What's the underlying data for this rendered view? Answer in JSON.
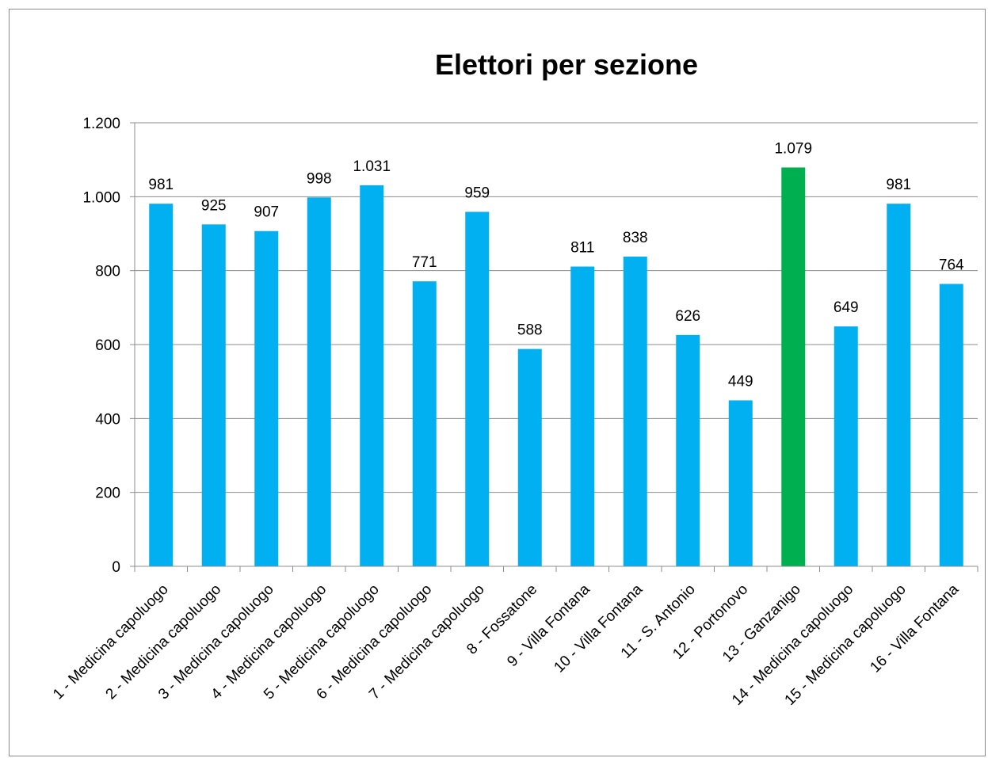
{
  "chart_data": {
    "type": "bar",
    "title": "Elettori per sezione",
    "xlabel": "",
    "ylabel": "",
    "ylim": [
      0,
      1200
    ],
    "yticks": [
      {
        "value": 0,
        "label": "0"
      },
      {
        "value": 200,
        "label": "200"
      },
      {
        "value": 400,
        "label": "400"
      },
      {
        "value": 600,
        "label": "600"
      },
      {
        "value": 800,
        "label": "800"
      },
      {
        "value": 1000,
        "label": "1.000"
      },
      {
        "value": 1200,
        "label": "1.200"
      }
    ],
    "grid": true,
    "legend": "none",
    "categories": [
      "1 - Medicina capoluogo",
      "2 - Medicina capoluogo",
      "3 - Medicina capoluogo",
      "4 - Medicina capoluogo",
      "5 - Medicina capoluogo",
      "6 - Medicina capoluogo",
      "7 - Medicina capoluogo",
      "8 - Fossatone",
      "9 - Villa Fontana",
      "10 - Villa Fontana",
      "11 - S. Antonio",
      "12 - Portonovo",
      "13 - Ganzanigo",
      "14 - Medicina capoluogo",
      "15 - Medicina capoluogo",
      "16 - Villa Fontana"
    ],
    "values": [
      981,
      925,
      907,
      998,
      1031,
      771,
      959,
      588,
      811,
      838,
      626,
      449,
      1079,
      649,
      981,
      764
    ],
    "data_labels": [
      "981",
      "925",
      "907",
      "998",
      "1.031",
      "771",
      "959",
      "588",
      "811",
      "838",
      "626",
      "449",
      "1.079",
      "649",
      "981",
      "764"
    ],
    "colors": {
      "default_bar": "#00b0f0",
      "highlight_bar": "#00b050",
      "gridline": "#8c8c8c",
      "axis": "#8c8c8c"
    },
    "highlight_index": 12
  }
}
